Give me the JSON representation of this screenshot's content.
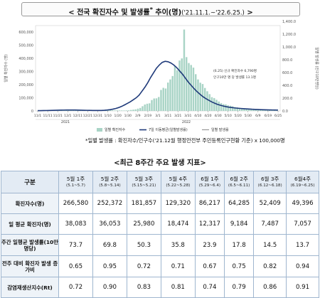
{
  "header": {
    "title_main": "< 전국 확진자수 및 발생률",
    "title_sup": "*",
    "title_mid": " 추이(명)",
    "title_range": "('21.11.1.~'22.6.25.)",
    "title_end": " >"
  },
  "chart_data": {
    "type": "bar",
    "y_left_ticks": [
      "0",
      "100,000",
      "200,000",
      "300,000",
      "400,000",
      "500,000",
      "600,000"
    ],
    "y_right_ticks": [
      "0.0",
      "200.0",
      "400.0",
      "600.0",
      "800.0",
      "1,000.0",
      "1,200.0",
      "1,400.0"
    ],
    "y_left_label": "일별 확진자수 (명)",
    "y_right_label": "일별 발생률 (인구10만명당)",
    "ylim_left": [
      0,
      650000
    ],
    "x_ticks": [
      "11/1",
      "11/11",
      "11/21",
      "12/1",
      "12/11",
      "12/21",
      "12/31",
      "1/10",
      "1/20",
      "1/30",
      "2/9",
      "2/19",
      "3/1",
      "3/11",
      "3/21",
      "3/31",
      "4/10",
      "4/20",
      "4/30",
      "5/10",
      "5/20",
      "5/30",
      "6/9",
      "6/19",
      "6/25"
    ],
    "year_labels": [
      "2021",
      "2022"
    ],
    "annotation": [
      "(6.25) 신규 확진자수 6,790명",
      "인구10만 명 당 발생률 13.1명"
    ],
    "legend": [
      "일별 확진자수",
      "7일 이동평균(일별발생률)",
      "일별 발생률"
    ],
    "series": [
      {
        "name": "일별 확진자수",
        "kind": "bar",
        "color": "#a9d4c6",
        "values": [
          2000,
          2500,
          2300,
          2700,
          2600,
          3000,
          3100,
          3200,
          3500,
          3300,
          3700,
          4200,
          4100,
          4800,
          4900,
          5100,
          4700,
          5300,
          5800,
          6200,
          6600,
          6800,
          7000,
          6400,
          6100,
          6900,
          7100,
          7300,
          7000,
          6500,
          5800,
          5400,
          4600,
          4200,
          4000,
          3800,
          3700,
          3400,
          3900,
          4500,
          7500,
          9800,
          12000,
          17500,
          23000,
          36000,
          49000,
          55000,
          58000,
          83000,
          95000,
          96000,
          106000,
          160000,
          176000,
          171000,
          216000,
          240000,
          266000,
          342000,
          310000,
          384000,
          400000,
          620000,
          410000,
          365000,
          350000,
          330000,
          280000,
          240000,
          215000,
          205000,
          175000,
          150000,
          128000,
          105000,
          98000,
          85000,
          72000,
          60000,
          52000,
          50000,
          43000,
          40000,
          35000,
          30000,
          27000,
          24000,
          22000,
          20000,
          18000,
          17000,
          15000,
          13000,
          11000,
          10000,
          9500,
          9000,
          8500,
          8000,
          7700,
          7200,
          7000,
          6800
        ]
      },
      {
        "name": "7일 이동평균(일별발생률)",
        "kind": "line",
        "color": "#1f3a7a",
        "values": [
          2200,
          2600,
          3000,
          3400,
          3900,
          4300,
          4900,
          5500,
          6200,
          6700,
          7000,
          7200,
          7100,
          6900,
          6500,
          6000,
          5300,
          4700,
          4200,
          3900,
          3700,
          3700,
          3900,
          5000,
          7000,
          10000,
          14000,
          19000,
          26000,
          35000,
          46000,
          58000,
          70000,
          85000,
          100000,
          120000,
          150000,
          180000,
          215000,
          255000,
          290000,
          325000,
          350000,
          370000,
          378000,
          375000,
          365000,
          350000,
          330000,
          305000,
          280000,
          250000,
          220000,
          195000,
          170000,
          148000,
          128000,
          110000,
          95000,
          82000,
          70000,
          60000,
          51000,
          44000,
          38000,
          33000,
          29000,
          26000,
          23000,
          21000,
          19000,
          17500,
          16000,
          14500,
          13000,
          12000,
          11000,
          10000,
          9200,
          8600,
          8000,
          7400,
          7000,
          6800
        ]
      },
      {
        "name": "일별 발생률",
        "kind": "line",
        "color": "#8b8b8b",
        "values": []
      }
    ]
  },
  "footnote": "*일별 발생률 : 확진자수/인구수('21.12월 행정안전부 주민등록인구현황 기준) x 100,000명",
  "table": {
    "title": "<최근 8주간 주요 발생 지표>",
    "corner": "구분",
    "columns": [
      {
        "week": "5월 1주",
        "range": "(5.1~5.7)"
      },
      {
        "week": "5월 2주",
        "range": "(5.8~5.14)"
      },
      {
        "week": "5월 3주",
        "range": "(5.15~5.21)"
      },
      {
        "week": "5월 4주",
        "range": "(5.22~5.28)"
      },
      {
        "week": "6월 1주",
        "range": "(5.29~6.4)"
      },
      {
        "week": "6월 2주",
        "range": "(6.5~6.11)"
      },
      {
        "week": "6월 3주",
        "range": "(6.12~6.18)"
      },
      {
        "week": "6월4주",
        "range": "(6.19~6.25)"
      }
    ],
    "rows": [
      {
        "label": "확진자수(명)",
        "values": [
          "266,580",
          "252,372",
          "181,857",
          "129,320",
          "86,217",
          "64,285",
          "52,409",
          "49,396"
        ]
      },
      {
        "label": "일 평균 확진자(명)",
        "values": [
          "38,083",
          "36,053",
          "25,980",
          "18,474",
          "12,317",
          "9,184",
          "7,487",
          "7,057"
        ]
      },
      {
        "label": "주간 일평균 발생률(10만 명당)",
        "values": [
          "73.7",
          "69.8",
          "50.3",
          "35.8",
          "23.9",
          "17.8",
          "14.5",
          "13.7"
        ]
      },
      {
        "label": "전주 대비 확진자 발생 증가비",
        "values": [
          "0.65",
          "0.95",
          "0.72",
          "0.71",
          "0.67",
          "0.75",
          "0.82",
          "0.94"
        ]
      },
      {
        "label": "감염재생산지수(Rt)",
        "values": [
          "0.72",
          "0.90",
          "0.83",
          "0.81",
          "0.74",
          "0.79",
          "0.86",
          "0.91"
        ]
      }
    ]
  }
}
